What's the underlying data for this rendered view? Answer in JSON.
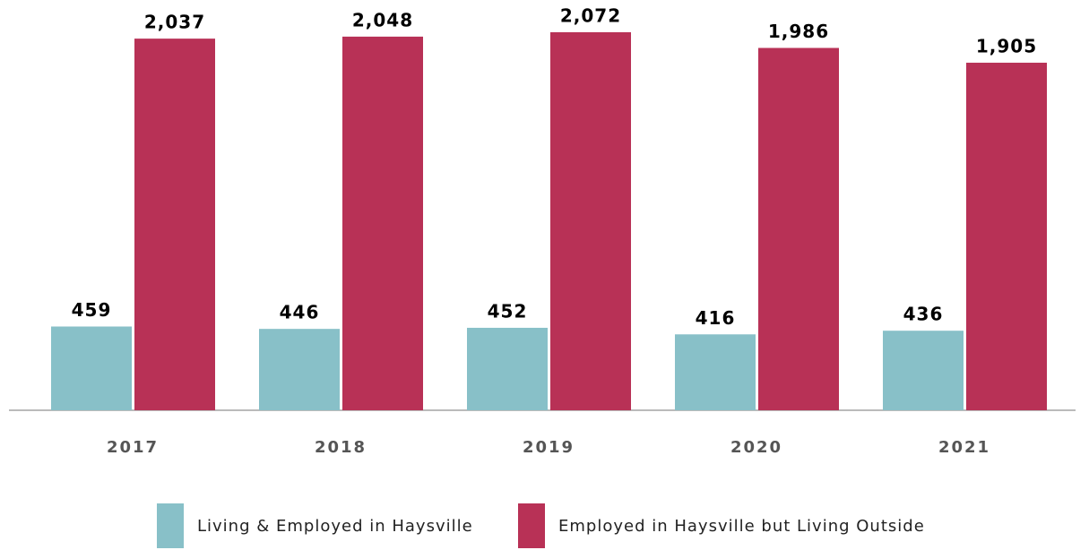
{
  "chart_data": {
    "type": "bar",
    "categories": [
      "2017",
      "2018",
      "2019",
      "2020",
      "2021"
    ],
    "series": [
      {
        "name": "Living & Employed in Haysville",
        "color": "#88c0c8",
        "values": [
          459,
          446,
          452,
          416,
          436
        ]
      },
      {
        "name": "Employed in Haysville but Living Outside",
        "color": "#b83156",
        "values": [
          2037,
          2048,
          2072,
          1986,
          1905
        ],
        "value_labels": [
          "2,037",
          "2,048",
          "2,072",
          "1,986",
          "1,905"
        ]
      }
    ]
  }
}
